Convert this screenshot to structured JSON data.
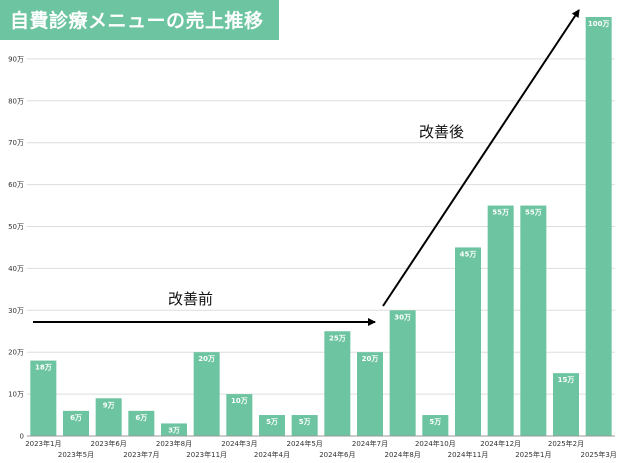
{
  "header": {
    "title": "自費診療メニューの売上推移"
  },
  "annotations": {
    "before": "改善前",
    "after": "改善後"
  },
  "colors": {
    "bar": "#6cc4a0",
    "title_bg": "#6cc4a0",
    "grid": "#dddddd",
    "arrow": "#000000"
  },
  "chart_data": {
    "type": "bar",
    "title": "自費診療メニューの売上推移",
    "xlabel": "",
    "ylabel": "",
    "ylim": [
      0,
      100
    ],
    "grid": true,
    "yticks": [
      "0",
      "10万",
      "20万",
      "30万",
      "40万",
      "50万",
      "60万",
      "70万",
      "80万",
      "90万"
    ],
    "categories": [
      "2023年1月",
      "2023年5月",
      "2023年6月",
      "2023年7月",
      "2023年8月",
      "2023年11月",
      "2024年3月",
      "2024年4月",
      "2024年5月",
      "2024年6月",
      "2024年7月",
      "2024年8月",
      "2024年10月",
      "2024年11月",
      "2024年12月",
      "2025年1月",
      "2025年2月",
      "2025年3月"
    ],
    "values": [
      18,
      6,
      9,
      6,
      3,
      20,
      10,
      5,
      5,
      25,
      20,
      30,
      5,
      45,
      55,
      55,
      15,
      100
    ],
    "data_labels": [
      "18万",
      "6万",
      "9万",
      "6万",
      "3万",
      "20万",
      "10万",
      "5万",
      "5万",
      "25万",
      "20万",
      "30万",
      "5万",
      "45万",
      "55万",
      "55万",
      "15万",
      "100万"
    ]
  }
}
